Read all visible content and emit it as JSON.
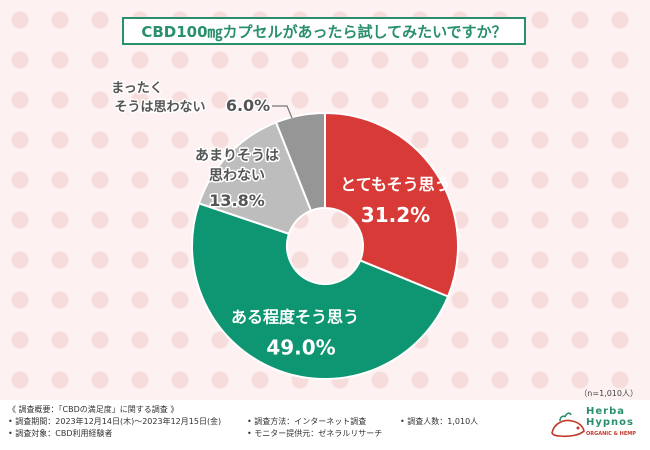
{
  "title": "CBD100㎎カプセルがあったら試してみたいですか？",
  "sample_size": "（n=1,010人）",
  "colors": {
    "accent": "#2a8f6c",
    "series": [
      "#d83b37",
      "#0e9672",
      "#bdbdbd",
      "#969696"
    ]
  },
  "chart_data": {
    "type": "pie",
    "style": "donut",
    "title": "CBD100㎎カプセルがあったら試してみたいですか？",
    "slices": [
      {
        "label": "とてもそう思う",
        "value": 31.2,
        "value_text": "31.2%",
        "color": "#d83b37"
      },
      {
        "label": "ある程度そう思う",
        "value": 49.0,
        "value_text": "49.0%",
        "color": "#0e9672"
      },
      {
        "label": "あまりそうは思わない",
        "label_lines": [
          "あまりそうは",
          "思わない"
        ],
        "value": 13.8,
        "value_text": "13.8%",
        "color": "#bdbdbd"
      },
      {
        "label": "まったくそうは思わない",
        "label_lines": [
          "まったく",
          "そうは思わない"
        ],
        "value": 6.0,
        "value_text": "6.0%",
        "color": "#969696"
      }
    ]
  },
  "footer": {
    "overview": "《 調査概要：「CBDの満足度」に関する調査 》",
    "period": "• 調査期間：2023年12月14日(木)～2023年12月15日(金)",
    "target": "• 調査対象：CBD利用経験者",
    "method": "• 調査方法：インターネット調査",
    "provider": "• モニター提供元：ゼネラルリサーチ",
    "count": "• 調査人数：1,010人"
  },
  "logo": {
    "line1": "Herba",
    "line2": "Hypnos",
    "line3": "ORGANIC & HEMP"
  }
}
